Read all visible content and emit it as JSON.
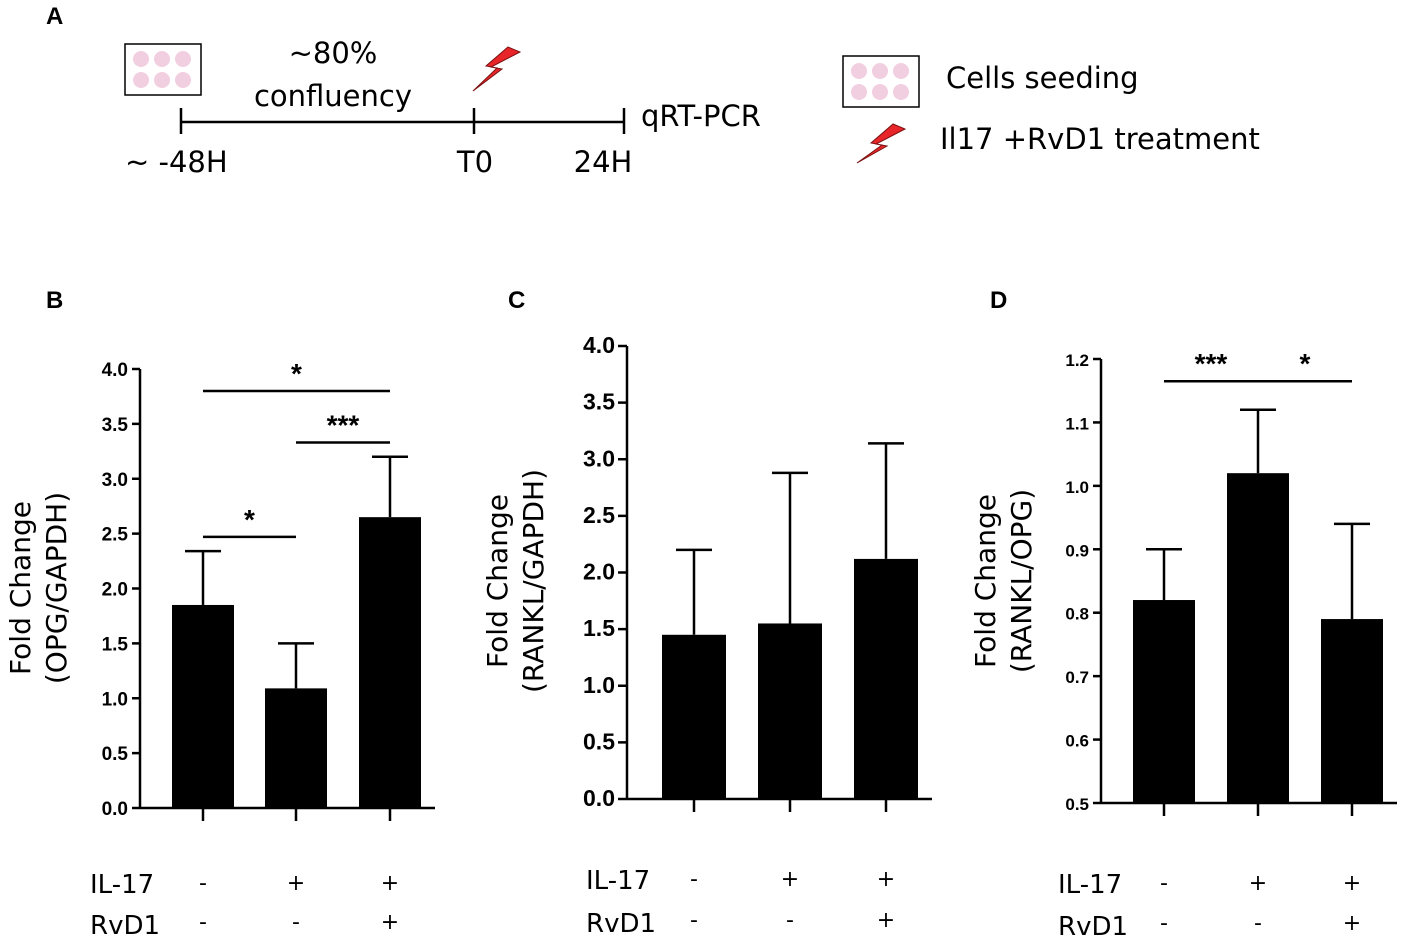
{
  "panels": {
    "A": "A",
    "B": "B",
    "C": "C",
    "D": "D"
  },
  "timeline": {
    "confluency_line1": "~80%",
    "confluency_line2": "confluency",
    "t_start": "~ -48H",
    "t0": "T0",
    "t24": "24H",
    "endpoint": "qRT-PCR",
    "legend_seeding": "Cells seeding",
    "legend_treatment": "Il17 +RvD1 treatment"
  },
  "colors": {
    "bar": "#000000",
    "bolt": "#e8262a",
    "well": "#f2cfe0"
  },
  "conditions": {
    "row1_label": "IL-17",
    "row2_label": "RvD1",
    "row1_signs": [
      "-",
      "+",
      "+"
    ],
    "row2_signs": [
      "-",
      "-",
      "+"
    ]
  },
  "chart_data": [
    {
      "id": "B",
      "type": "bar",
      "ylabel_line1": "Fold Change",
      "ylabel_line2": "(OPG/GAPDH)",
      "ylim": [
        0,
        4.0
      ],
      "ticks": [
        "0.0",
        "0.5",
        "1.0",
        "1.5",
        "2.0",
        "2.5",
        "3.0",
        "3.5",
        "4.0"
      ],
      "values": [
        1.85,
        1.09,
        2.65
      ],
      "errors": [
        0.49,
        0.41,
        0.55
      ],
      "significance": [
        {
          "from": 0,
          "to": 1,
          "label": "*",
          "y": 2.47
        },
        {
          "from": 1,
          "to": 2,
          "label": "***",
          "y": 3.33
        },
        {
          "from": 0,
          "to": 2,
          "label": "*",
          "y": 3.8
        }
      ]
    },
    {
      "id": "C",
      "type": "bar",
      "ylabel_line1": "Fold Change",
      "ylabel_line2": "(RANKL/GAPDH)",
      "ylim": [
        0,
        4.0
      ],
      "ticks": [
        "0.0",
        "0.5",
        "1.0",
        "1.5",
        "2.0",
        "2.5",
        "3.0",
        "3.5",
        "4.0"
      ],
      "values": [
        1.45,
        1.55,
        2.12
      ],
      "errors": [
        0.75,
        1.33,
        1.02
      ],
      "significance": []
    },
    {
      "id": "D",
      "type": "bar",
      "ylabel_line1": "Fold Change",
      "ylabel_line2": "(RANKL/OPG)",
      "ylim": [
        0.5,
        1.2
      ],
      "ticks": [
        "0.5",
        "0.6",
        "0.7",
        "0.8",
        "0.9",
        "1.0",
        "1.1",
        "1.2"
      ],
      "values": [
        0.82,
        1.02,
        0.79
      ],
      "errors": [
        0.08,
        0.1,
        0.15
      ],
      "significance": [
        {
          "from": 0,
          "to": 1,
          "label": "***",
          "y": 1.165
        },
        {
          "from": 1,
          "to": 2,
          "label": "*",
          "y": 1.165
        }
      ]
    }
  ]
}
